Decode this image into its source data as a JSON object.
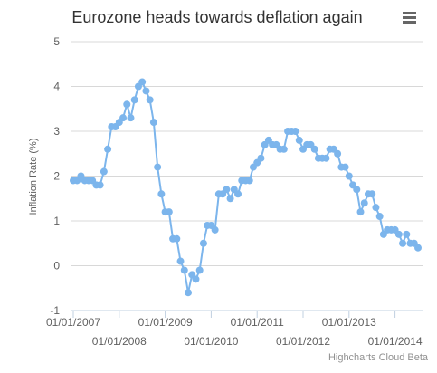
{
  "chart_data": {
    "type": "line",
    "title": "Eurozone heads towards deflation again",
    "ylabel": "Inflation Rate (%)",
    "ylim": [
      -1,
      5
    ],
    "yticks": [
      "5",
      "4",
      "3",
      "2",
      "1",
      "0",
      "-1"
    ],
    "xtick_labels_upper": [
      "01/01/2007",
      "01/01/2009",
      "01/01/2011",
      "01/01/2013"
    ],
    "xtick_labels_lower": [
      "01/01/2008",
      "01/01/2010",
      "01/01/2012",
      "01/01/2014"
    ],
    "x_start": "2007-01",
    "x_end": "2014-07",
    "grid": "horizontal",
    "legend": "none",
    "credit": "Highcharts Cloud Beta",
    "series": [
      {
        "color": "#7cb5ec",
        "x": [
          "2007-01",
          "2007-02",
          "2007-03",
          "2007-04",
          "2007-05",
          "2007-06",
          "2007-07",
          "2007-08",
          "2007-09",
          "2007-10",
          "2007-11",
          "2007-12",
          "2008-01",
          "2008-02",
          "2008-03",
          "2008-04",
          "2008-05",
          "2008-06",
          "2008-07",
          "2008-08",
          "2008-09",
          "2008-10",
          "2008-11",
          "2008-12",
          "2009-01",
          "2009-02",
          "2009-03",
          "2009-04",
          "2009-05",
          "2009-06",
          "2009-07",
          "2009-08",
          "2009-09",
          "2009-10",
          "2009-11",
          "2009-12",
          "2010-01",
          "2010-02",
          "2010-03",
          "2010-04",
          "2010-05",
          "2010-06",
          "2010-07",
          "2010-08",
          "2010-09",
          "2010-10",
          "2010-11",
          "2010-12",
          "2011-01",
          "2011-02",
          "2011-03",
          "2011-04",
          "2011-05",
          "2011-06",
          "2011-07",
          "2011-08",
          "2011-09",
          "2011-10",
          "2011-11",
          "2011-12",
          "2012-01",
          "2012-02",
          "2012-03",
          "2012-04",
          "2012-05",
          "2012-06",
          "2012-07",
          "2012-08",
          "2012-09",
          "2012-10",
          "2012-11",
          "2012-12",
          "2013-01",
          "2013-02",
          "2013-03",
          "2013-04",
          "2013-05",
          "2013-06",
          "2013-07",
          "2013-08",
          "2013-09",
          "2013-10",
          "2013-11",
          "2013-12",
          "2014-01",
          "2014-02",
          "2014-03",
          "2014-04",
          "2014-05",
          "2014-06",
          "2014-07"
        ],
        "values": [
          1.9,
          1.9,
          2.0,
          1.9,
          1.9,
          1.9,
          1.8,
          1.8,
          2.1,
          2.6,
          3.1,
          3.1,
          3.2,
          3.3,
          3.6,
          3.3,
          3.7,
          4.0,
          4.1,
          3.9,
          3.7,
          3.2,
          2.2,
          1.6,
          1.2,
          1.2,
          0.6,
          0.6,
          0.1,
          -0.1,
          -0.6,
          -0.2,
          -0.3,
          -0.1,
          0.5,
          0.9,
          0.9,
          0.8,
          1.6,
          1.6,
          1.7,
          1.5,
          1.7,
          1.6,
          1.9,
          1.9,
          1.9,
          2.2,
          2.3,
          2.4,
          2.7,
          2.8,
          2.7,
          2.7,
          2.6,
          2.6,
          3.0,
          3.0,
          3.0,
          2.8,
          2.6,
          2.7,
          2.7,
          2.6,
          2.4,
          2.4,
          2.4,
          2.6,
          2.6,
          2.5,
          2.2,
          2.2,
          2.0,
          1.8,
          1.7,
          1.2,
          1.4,
          1.6,
          1.6,
          1.3,
          1.1,
          0.7,
          0.8,
          0.8,
          0.8,
          0.7,
          0.5,
          0.7,
          0.5,
          0.5,
          0.4
        ]
      }
    ]
  }
}
